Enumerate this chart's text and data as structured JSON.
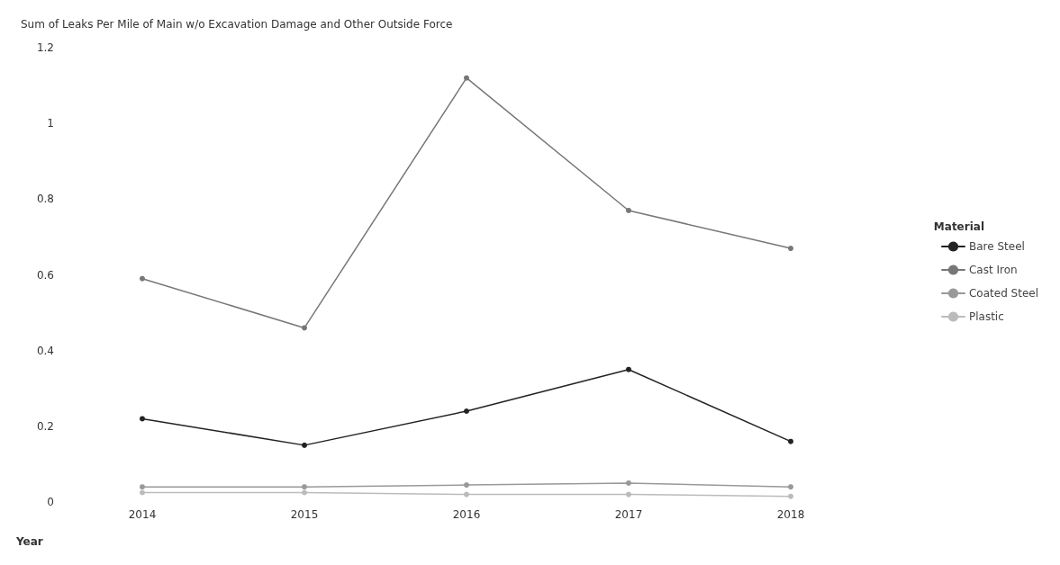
{
  "chart_data": {
    "type": "line",
    "title": "Sum of Leaks Per Mile of Main w/o Excavation Damage and Other Outside Force",
    "xlabel": "Year",
    "legend_title": "Material",
    "categories": [
      "2014",
      "2015",
      "2016",
      "2017",
      "2018"
    ],
    "series": [
      {
        "name": "Bare Steel",
        "color": "#222222",
        "values": [
          0.22,
          0.15,
          0.24,
          0.35,
          0.16
        ]
      },
      {
        "name": "Cast Iron",
        "color": "#777777",
        "values": [
          0.59,
          0.46,
          1.12,
          0.77,
          0.67
        ]
      },
      {
        "name": "Coated Steel",
        "color": "#999999",
        "values": [
          0.04,
          0.04,
          0.045,
          0.05,
          0.04
        ]
      },
      {
        "name": "Plastic",
        "color": "#bbbbbb",
        "values": [
          0.025,
          0.025,
          0.02,
          0.02,
          0.015
        ]
      }
    ],
    "ylim": [
      0,
      1.2
    ],
    "yticks": [
      0,
      0.2,
      0.4,
      0.6,
      0.8,
      1,
      1.2
    ],
    "grid": false,
    "legend": "right",
    "marker": "circle",
    "line_style": "solid"
  }
}
